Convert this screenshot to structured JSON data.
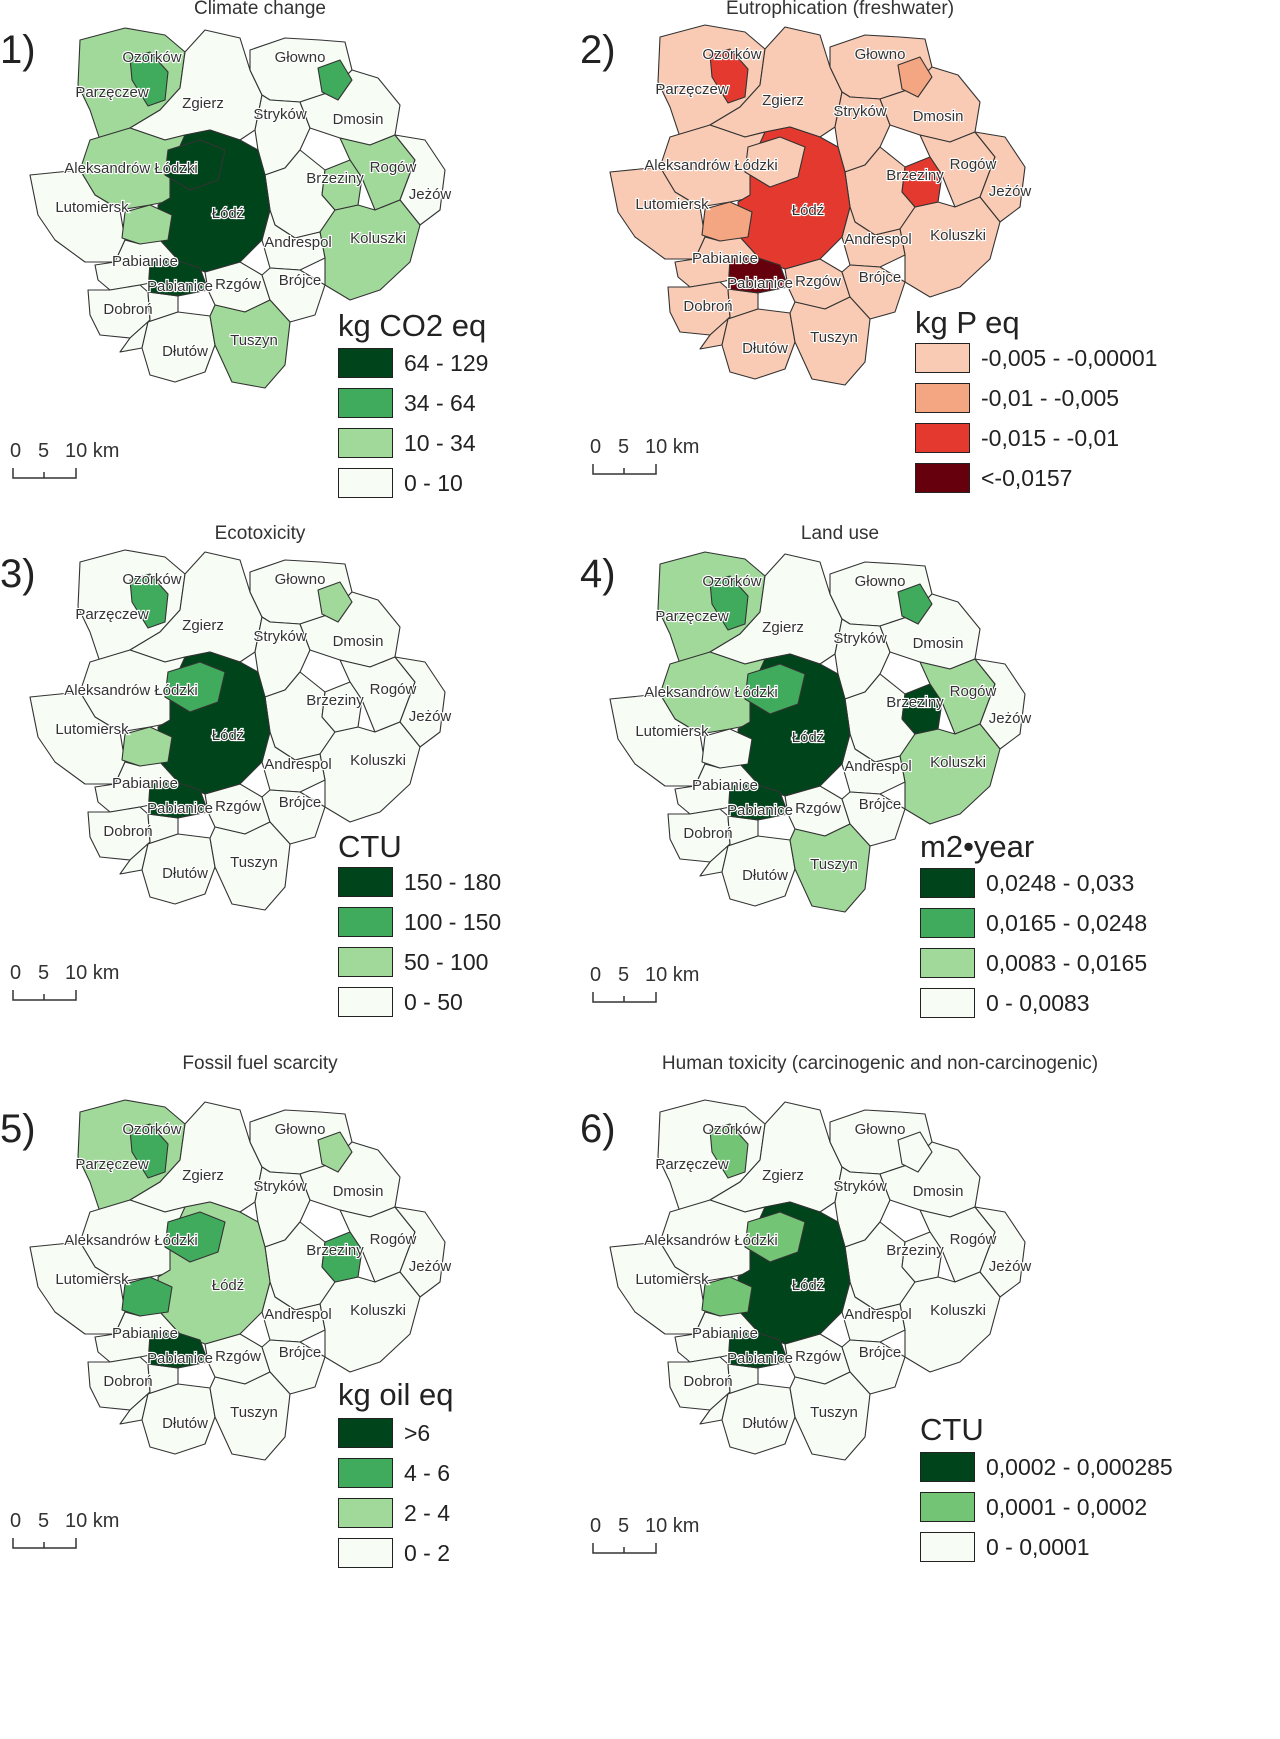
{
  "district_names": {
    "ozorkow": "Ozorków",
    "parzeczew": "Parzęczew",
    "zgierz": "Zgierz",
    "glowno": "Głowno",
    "strykow": "Stryków",
    "dmosin": "Dmosin",
    "aleksandrow": "Aleksandrów Łódzki",
    "brzeziny": "Brzeziny",
    "rogow": "Rogów",
    "jezow": "Jeżów",
    "lutomiersk": "Lutomiersk",
    "lodz": "Łódź",
    "andrespol": "Andrespol",
    "koluszki": "Koluszki",
    "pabianice_gm": "Pabianice",
    "pabianice_city": "Pabianice",
    "rzgow": "Rzgów",
    "brojce": "Brójce",
    "dobron": "Dobroń",
    "dlutow": "Dłutów",
    "tuszyn": "Tuszyn",
    "lutomiersk_small": ""
  },
  "scale_bar": {
    "label_0": "0",
    "label_5": "5",
    "label_10": "10 km"
  },
  "panels": [
    {
      "number": "1)",
      "title": "Climate change",
      "legend_title": "kg CO2 eq",
      "legend": [
        {
          "label": "64 - 129",
          "color": "#00441b"
        },
        {
          "label": "34 - 64",
          "color": "#41ab5d"
        },
        {
          "label": "10 - 34",
          "color": "#a1d99b"
        },
        {
          "label": "0 - 10",
          "color": "#f7fcf5"
        }
      ],
      "classes": {
        "lodz": 0,
        "pabianice_city": 0,
        "ozorkow": 1,
        "glowno": 1,
        "parzeczew": 2,
        "aleksandrow": 2,
        "lutomiersk_small": 2,
        "brzeziny": 2,
        "rogow": 2,
        "koluszki": 2,
        "tuszyn": 2
      }
    },
    {
      "number": "2)",
      "title": "Eutrophication (freshwater)",
      "legend_title": "kg P eq",
      "legend": [
        {
          "label": "-0,005 - -0,00001",
          "color": "#f9cbb4"
        },
        {
          "label": "-0,01 - -0,005",
          "color": "#f4a582"
        },
        {
          "label": "-0,015 - -0,01",
          "color": "#e3392e"
        },
        {
          "label": "<-0,0157",
          "color": "#67000d"
        }
      ],
      "default_class": 0,
      "classes": {
        "lodz": 2,
        "ozorkow": 2,
        "brzeziny": 2,
        "glowno": 1,
        "lutomiersk_small": 1,
        "pabianice_city": 3
      }
    },
    {
      "number": "3)",
      "title": "Ecotoxicity",
      "legend_title": "CTU",
      "legend": [
        {
          "label": "150 - 180",
          "color": "#00441b"
        },
        {
          "label": "100 - 150",
          "color": "#41ab5d"
        },
        {
          "label": "50 - 100",
          "color": "#a1d99b"
        },
        {
          "label": "0 - 50",
          "color": "#f7fcf5"
        }
      ],
      "classes": {
        "lodz": 0,
        "pabianice_city": 0,
        "ozorkow": 1,
        "zgierz_south": 1,
        "glowno": 2,
        "lutomiersk_small": 2
      }
    },
    {
      "number": "4)",
      "title": "Land use",
      "legend_title": "m2•year",
      "legend": [
        {
          "label": "0,0248 - 0,033",
          "color": "#00441b"
        },
        {
          "label": "0,0165 - 0,0248",
          "color": "#41ab5d"
        },
        {
          "label": "0,0083 - 0,0165",
          "color": "#a1d99b"
        },
        {
          "label": "0 - 0,0083",
          "color": "#f7fcf5"
        }
      ],
      "classes": {
        "lodz": 0,
        "pabianice_city": 0,
        "brzeziny": 0,
        "ozorkow": 1,
        "glowno": 1,
        "zgierz_south": 1,
        "parzeczew": 2,
        "aleksandrow": 2,
        "rogow": 2,
        "koluszki": 2,
        "tuszyn": 2
      }
    },
    {
      "number": "5)",
      "title": "Fossil fuel scarcity",
      "legend_title": "kg oil eq",
      "legend": [
        {
          "label": ">6",
          "color": "#00441b"
        },
        {
          "label": "4 - 6",
          "color": "#41ab5d"
        },
        {
          "label": "2 - 4",
          "color": "#a1d99b"
        },
        {
          "label": "0 - 2",
          "color": "#f7fcf5"
        }
      ],
      "classes": {
        "pabianice_city": 0,
        "ozorkow": 1,
        "zgierz_south": 1,
        "lutomiersk_small": 1,
        "brzeziny": 1,
        "lodz": 2,
        "parzeczew": 2,
        "glowno": 2
      }
    },
    {
      "number": "6)",
      "title": "Human toxicity (carcinogenic and non-carcinogenic)",
      "legend_title": "CTU",
      "legend": [
        {
          "label": "0,0002 - 0,000285",
          "color": "#00441b"
        },
        {
          "label": "0,0001 - 0,0002",
          "color": "#74c476"
        },
        {
          "label": "0 - 0,0001",
          "color": "#f7fcf5"
        }
      ],
      "classes": {
        "lodz": 0,
        "pabianice_city": 0,
        "ozorkow": 1,
        "zgierz_south": 1,
        "lutomiersk_small": 1
      }
    }
  ]
}
